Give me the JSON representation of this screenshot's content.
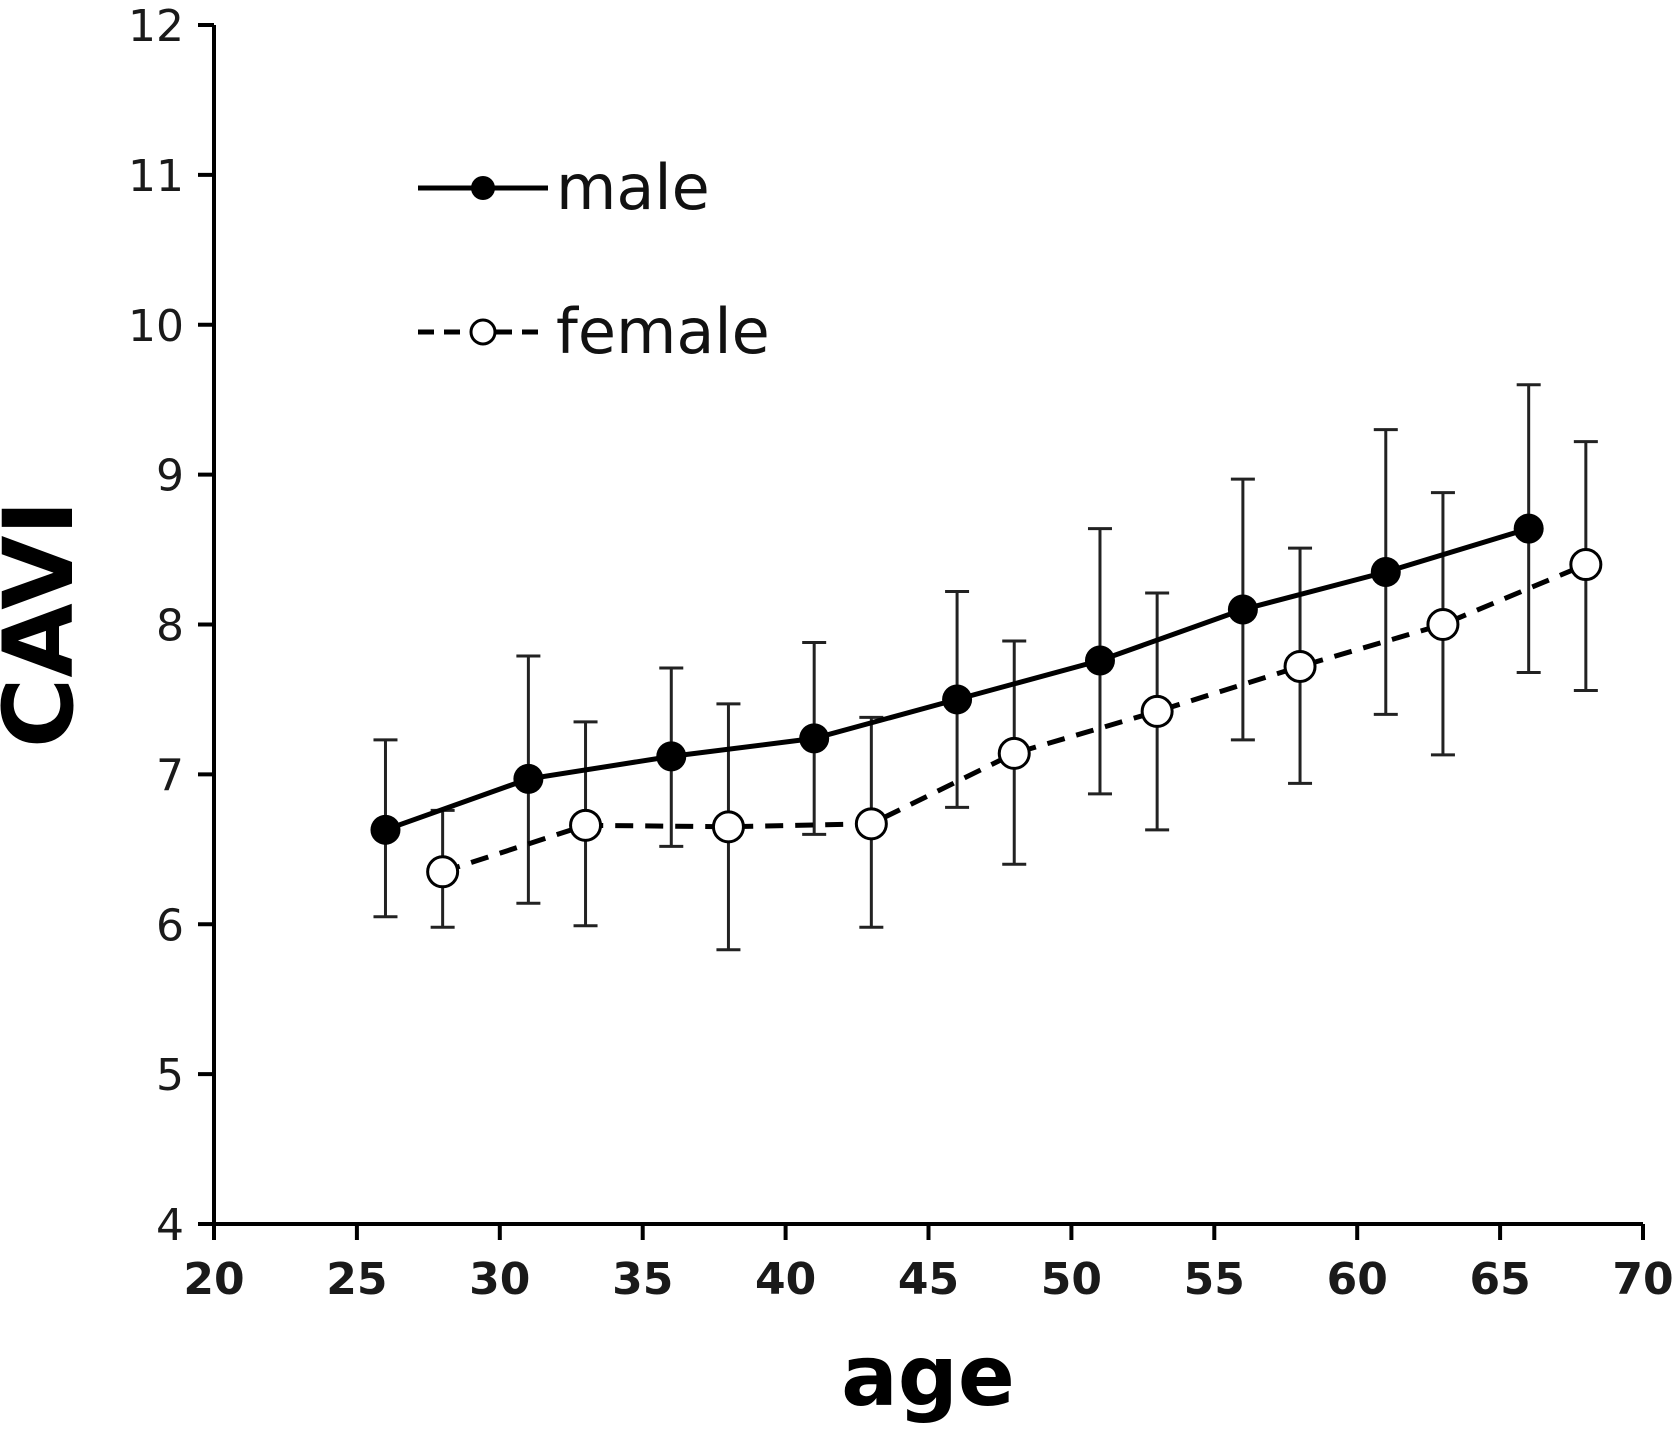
{
  "chart_data": {
    "type": "line",
    "xlabel": "age",
    "ylabel": "CAVI",
    "xlim": [
      20,
      70
    ],
    "ylim": [
      4,
      12
    ],
    "x_ticks": [
      "20",
      "25",
      "30",
      "35",
      "40",
      "45",
      "50",
      "55",
      "60",
      "65",
      "70"
    ],
    "y_ticks": [
      "4",
      "5",
      "6",
      "7",
      "8",
      "9",
      "10",
      "11",
      "12"
    ],
    "grid": false,
    "legend_position": "top-left",
    "error_bars": true,
    "series": [
      {
        "name": "male",
        "marker": "filled-circle",
        "line_style": "solid",
        "x": [
          26,
          31,
          36,
          41,
          46,
          51,
          56,
          61,
          66
        ],
        "y": [
          6.63,
          6.97,
          7.12,
          7.24,
          7.5,
          7.76,
          8.1,
          8.35,
          8.64
        ],
        "err_low": [
          6.05,
          6.14,
          6.52,
          6.6,
          6.78,
          6.87,
          7.23,
          7.4,
          7.68
        ],
        "err_high": [
          7.23,
          7.79,
          7.71,
          7.88,
          8.22,
          8.64,
          8.97,
          9.3,
          9.6
        ]
      },
      {
        "name": "female",
        "marker": "open-circle",
        "line_style": "dashed",
        "x": [
          28,
          33,
          38,
          43,
          48,
          53,
          58,
          63,
          68
        ],
        "y": [
          6.35,
          6.66,
          6.65,
          6.67,
          7.14,
          7.42,
          7.72,
          8.0,
          8.4
        ],
        "err_low": [
          5.98,
          5.99,
          5.83,
          5.98,
          6.4,
          6.63,
          6.94,
          7.13,
          7.56
        ],
        "err_high": [
          6.76,
          7.35,
          7.47,
          7.38,
          7.89,
          8.21,
          8.51,
          8.88,
          9.22
        ]
      }
    ]
  }
}
